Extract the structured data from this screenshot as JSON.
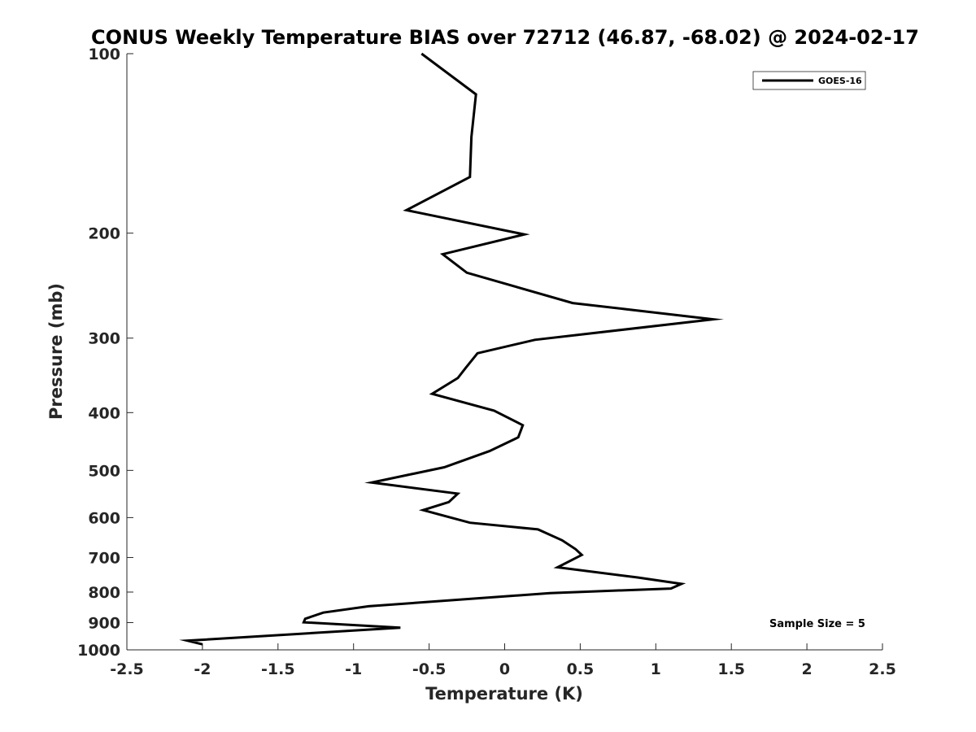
{
  "chart_data": {
    "type": "line",
    "title": "CONUS Weekly Temperature BIAS over 72712 (46.87, -68.02) @ 2024-02-17",
    "xlabel": "Temperature (K)",
    "ylabel": "Pressure (mb)",
    "xlim": [
      -2.5,
      2.5
    ],
    "ylim": [
      1000,
      100
    ],
    "yscale": "log",
    "y_reversed": true,
    "xticks": [
      -2.5,
      -2,
      -1.5,
      -1,
      -0.5,
      0,
      0.5,
      1,
      1.5,
      2,
      2.5
    ],
    "xtick_labels": [
      "-2.5",
      "-2",
      "-1.5",
      "-1",
      "-0.5",
      "0",
      "0.5",
      "1",
      "1.5",
      "2",
      "2.5"
    ],
    "yticks": [
      100,
      200,
      300,
      400,
      500,
      600,
      700,
      800,
      900,
      1000
    ],
    "ytick_labels": [
      "100",
      "200",
      "300",
      "400",
      "500",
      "600",
      "700",
      "800",
      "900",
      "1000"
    ],
    "grid": false,
    "legend": {
      "location": "top-right",
      "entries": [
        "GOES-16"
      ]
    },
    "annotation": "Sample Size = 5",
    "series": [
      {
        "name": "GOES-16",
        "color": "#000000",
        "points": [
          {
            "x": -0.55,
            "y": 100
          },
          {
            "x": -0.19,
            "y": 117
          },
          {
            "x": -0.22,
            "y": 138
          },
          {
            "x": -0.23,
            "y": 161
          },
          {
            "x": -0.65,
            "y": 183
          },
          {
            "x": 0.13,
            "y": 201
          },
          {
            "x": -0.41,
            "y": 217
          },
          {
            "x": -0.25,
            "y": 233
          },
          {
            "x": 0.45,
            "y": 262
          },
          {
            "x": 1.38,
            "y": 279
          },
          {
            "x": 0.2,
            "y": 302
          },
          {
            "x": -0.18,
            "y": 318
          },
          {
            "x": -0.26,
            "y": 337
          },
          {
            "x": -0.31,
            "y": 350
          },
          {
            "x": -0.48,
            "y": 372
          },
          {
            "x": -0.07,
            "y": 397
          },
          {
            "x": 0.12,
            "y": 420
          },
          {
            "x": 0.09,
            "y": 440
          },
          {
            "x": -0.1,
            "y": 464
          },
          {
            "x": -0.4,
            "y": 494
          },
          {
            "x": -0.88,
            "y": 524
          },
          {
            "x": -0.31,
            "y": 547
          },
          {
            "x": -0.37,
            "y": 565
          },
          {
            "x": -0.54,
            "y": 583
          },
          {
            "x": -0.23,
            "y": 612
          },
          {
            "x": 0.22,
            "y": 628
          },
          {
            "x": 0.38,
            "y": 655
          },
          {
            "x": 0.47,
            "y": 678
          },
          {
            "x": 0.51,
            "y": 693
          },
          {
            "x": 0.35,
            "y": 727
          },
          {
            "x": 0.88,
            "y": 756
          },
          {
            "x": 1.17,
            "y": 775
          },
          {
            "x": 1.1,
            "y": 789
          },
          {
            "x": 0.3,
            "y": 803
          },
          {
            "x": -0.9,
            "y": 845
          },
          {
            "x": -1.2,
            "y": 866
          },
          {
            "x": -1.32,
            "y": 887
          },
          {
            "x": -1.33,
            "y": 899
          },
          {
            "x": -0.69,
            "y": 918
          },
          {
            "x": -2.1,
            "y": 965
          },
          {
            "x": -2.0,
            "y": 979
          }
        ]
      }
    ]
  }
}
